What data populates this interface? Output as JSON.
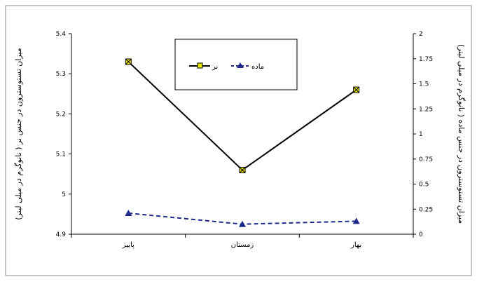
{
  "chart_data": {
    "type": "line",
    "categories": [
      "پاییز",
      "زمستان",
      "بهار"
    ],
    "series": [
      {
        "name": "نر",
        "axis": "left",
        "values": [
          5.33,
          5.06,
          5.26
        ],
        "color": "#000000",
        "line_style": "solid",
        "marker": "square-x",
        "marker_fill": "#e8e800"
      },
      {
        "name": "ماده",
        "axis": "right",
        "values": [
          0.21,
          0.1,
          0.13
        ],
        "color": "#1f2a8c",
        "line_style": "dashed",
        "marker": "triangle",
        "marker_fill": "#1f2a8c"
      }
    ],
    "ylabel_left": "میزان تستوسترون در جنس نر ( نانوگرم در میلی لیتر)",
    "ylabel_right": "میزان تستوسترون در جنس ماده ( نانوگرم در میلی لیتر)",
    "ylim_left": [
      4.9,
      5.4
    ],
    "yticks_left": [
      "5.4",
      "5.3",
      "5.2",
      "5.1",
      "5",
      "4.9"
    ],
    "ylim_right": [
      0,
      2
    ],
    "yticks_right": [
      "2",
      "1.75",
      "1.5",
      "1.25",
      "1",
      "0.75",
      "0.5",
      "0.25",
      "0"
    ],
    "grid": false,
    "legend_placement": "top-center"
  }
}
